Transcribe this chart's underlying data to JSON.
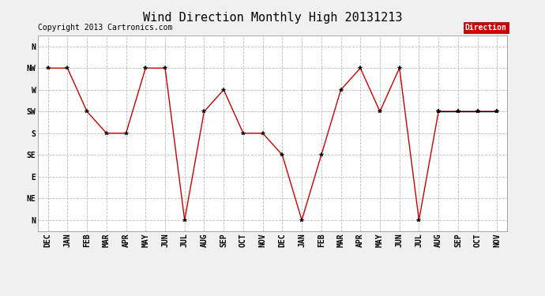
{
  "title": "Wind Direction Monthly High 20131213",
  "copyright": "Copyright 2013 Cartronics.com",
  "x_labels": [
    "DEC",
    "JAN",
    "FEB",
    "MAR",
    "APR",
    "MAY",
    "JUN",
    "JUL",
    "AUG",
    "SEP",
    "OCT",
    "NOV",
    "DEC",
    "JAN",
    "FEB",
    "MAR",
    "APR",
    "MAY",
    "JUN",
    "JUL",
    "AUG",
    "SEP",
    "OCT",
    "NOV"
  ],
  "y_labels_top_to_bottom": [
    "N",
    "NW",
    "W",
    "SW",
    "S",
    "SE",
    "E",
    "NE",
    "N"
  ],
  "y_ticks": [
    8,
    7,
    6,
    5,
    4,
    3,
    2,
    1,
    0
  ],
  "red_series": [
    7,
    7,
    5,
    4,
    4,
    7,
    7,
    0,
    5,
    6,
    4,
    4,
    3,
    0,
    3,
    6,
    7,
    5,
    7,
    0,
    5,
    5,
    5,
    5
  ],
  "black_series_x": [
    20,
    21,
    22,
    23
  ],
  "black_series_y": [
    5,
    5,
    5,
    5
  ],
  "bg_color": "#f0f0f0",
  "plot_bg_color": "#ffffff",
  "line_color_red": "#cc0000",
  "line_color_black": "#000000",
  "legend_label": "Direction",
  "legend_bg": "#cc0000",
  "legend_text_color": "#ffffff",
  "title_fontsize": 11,
  "axis_fontsize": 7,
  "copyright_fontsize": 7
}
